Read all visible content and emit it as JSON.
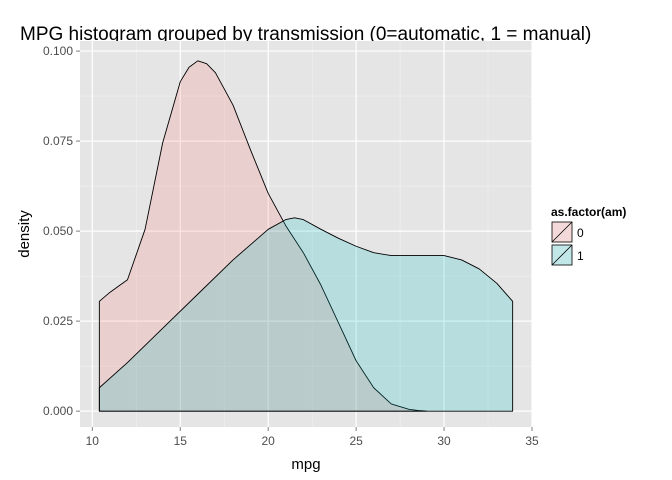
{
  "chart_data": {
    "type": "area",
    "title": "MPG histogram grouped by transmission (0=automatic, 1 = manual)",
    "xlabel": "mpg",
    "ylabel": "density",
    "xlim": [
      9.3,
      35.0
    ],
    "ylim": [
      -0.0044,
      0.1028
    ],
    "x_ticks": [
      10,
      15,
      20,
      25,
      30,
      35
    ],
    "y_ticks": [
      0.0,
      0.025,
      0.05,
      0.075,
      0.1
    ],
    "x_tick_labels": [
      "10",
      "15",
      "20",
      "25",
      "30",
      "35"
    ],
    "y_tick_labels": [
      "0.000",
      "0.025",
      "0.050",
      "0.075",
      "0.100"
    ],
    "grid": true,
    "legend": {
      "title": "as.factor(am)",
      "position": "right",
      "labels": [
        "0",
        "1"
      ]
    },
    "series": [
      {
        "name": "0",
        "color": "#F8766D",
        "x": [
          10.4,
          11.0,
          12.0,
          13.0,
          14.0,
          15.0,
          15.5,
          16.0,
          16.5,
          17.0,
          18.0,
          19.0,
          20.0,
          21.0,
          22.0,
          23.0,
          24.0,
          25.0,
          26.0,
          27.0,
          28.0,
          28.5,
          28.8,
          29.0
        ],
        "values": [
          0.0305,
          0.033,
          0.0365,
          0.0505,
          0.0745,
          0.0915,
          0.0955,
          0.0973,
          0.0965,
          0.094,
          0.085,
          0.0725,
          0.0605,
          0.0515,
          0.044,
          0.035,
          0.0245,
          0.014,
          0.0065,
          0.002,
          0.0005,
          0.0002,
          0.0001,
          0.0
        ]
      },
      {
        "name": "1",
        "color": "#00BFC4",
        "x": [
          10.4,
          12.0,
          14.0,
          16.0,
          18.0,
          20.0,
          21.0,
          21.5,
          22.0,
          23.0,
          24.0,
          25.0,
          26.0,
          27.0,
          28.0,
          29.0,
          30.0,
          31.0,
          32.0,
          33.0,
          33.9
        ],
        "values": [
          0.0065,
          0.0135,
          0.023,
          0.0325,
          0.042,
          0.0505,
          0.0532,
          0.0537,
          0.0532,
          0.0505,
          0.048,
          0.0458,
          0.044,
          0.0432,
          0.0432,
          0.0432,
          0.0432,
          0.042,
          0.0395,
          0.0355,
          0.0305
        ]
      }
    ]
  }
}
